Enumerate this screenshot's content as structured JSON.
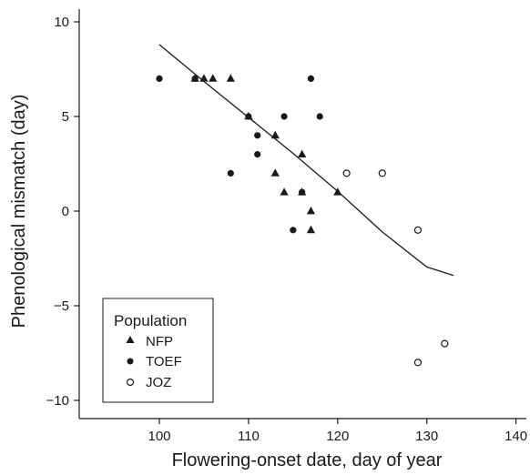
{
  "chart_data": {
    "type": "scatter",
    "xlabel": "Flowering-onset date, day of year",
    "ylabel": "Phenological mismatch (day)",
    "xlim": [
      90,
      140
    ],
    "ylim": [
      -11,
      10.5
    ],
    "x_ticks": [
      100,
      110,
      120,
      130,
      140
    ],
    "y_ticks": [
      -10,
      -5,
      0,
      5,
      10
    ],
    "x_tick_labels": [
      "100",
      "110",
      "120",
      "130",
      "140"
    ],
    "y_tick_labels": [
      "−10",
      "−5",
      "0",
      "5",
      "10"
    ],
    "grid": false,
    "legend": {
      "title": "Population",
      "position": "bottom-left",
      "entries": [
        {
          "name": "NFP",
          "marker": "filled-triangle"
        },
        {
          "name": "TOEF",
          "marker": "filled-circle"
        },
        {
          "name": "JOZ",
          "marker": "open-circle"
        }
      ]
    },
    "series": [
      {
        "name": "NFP",
        "marker": "filled-triangle",
        "x": [
          104,
          105,
          106,
          108,
          110,
          113,
          113,
          114,
          116,
          116,
          117,
          117,
          120
        ],
        "y": [
          7,
          7,
          7,
          7,
          5,
          4,
          2,
          1,
          3,
          1,
          0,
          -1,
          1
        ]
      },
      {
        "name": "TOEF",
        "marker": "filled-circle",
        "x": [
          100,
          104,
          108,
          110,
          111,
          111,
          114,
          115,
          116,
          117,
          118
        ],
        "y": [
          7,
          7,
          2,
          5,
          4,
          3,
          5,
          -1,
          1,
          7,
          5
        ]
      },
      {
        "name": "JOZ",
        "marker": "open-circle",
        "x": [
          121,
          125,
          129,
          129,
          132
        ],
        "y": [
          2,
          2,
          -1,
          -8,
          -7
        ]
      }
    ],
    "trend_line": {
      "x": [
        100,
        105,
        110,
        115,
        120,
        125,
        130,
        133
      ],
      "y": [
        8.8,
        6.85,
        4.95,
        3.05,
        1.05,
        -1.1,
        -2.95,
        -3.4
      ]
    }
  }
}
